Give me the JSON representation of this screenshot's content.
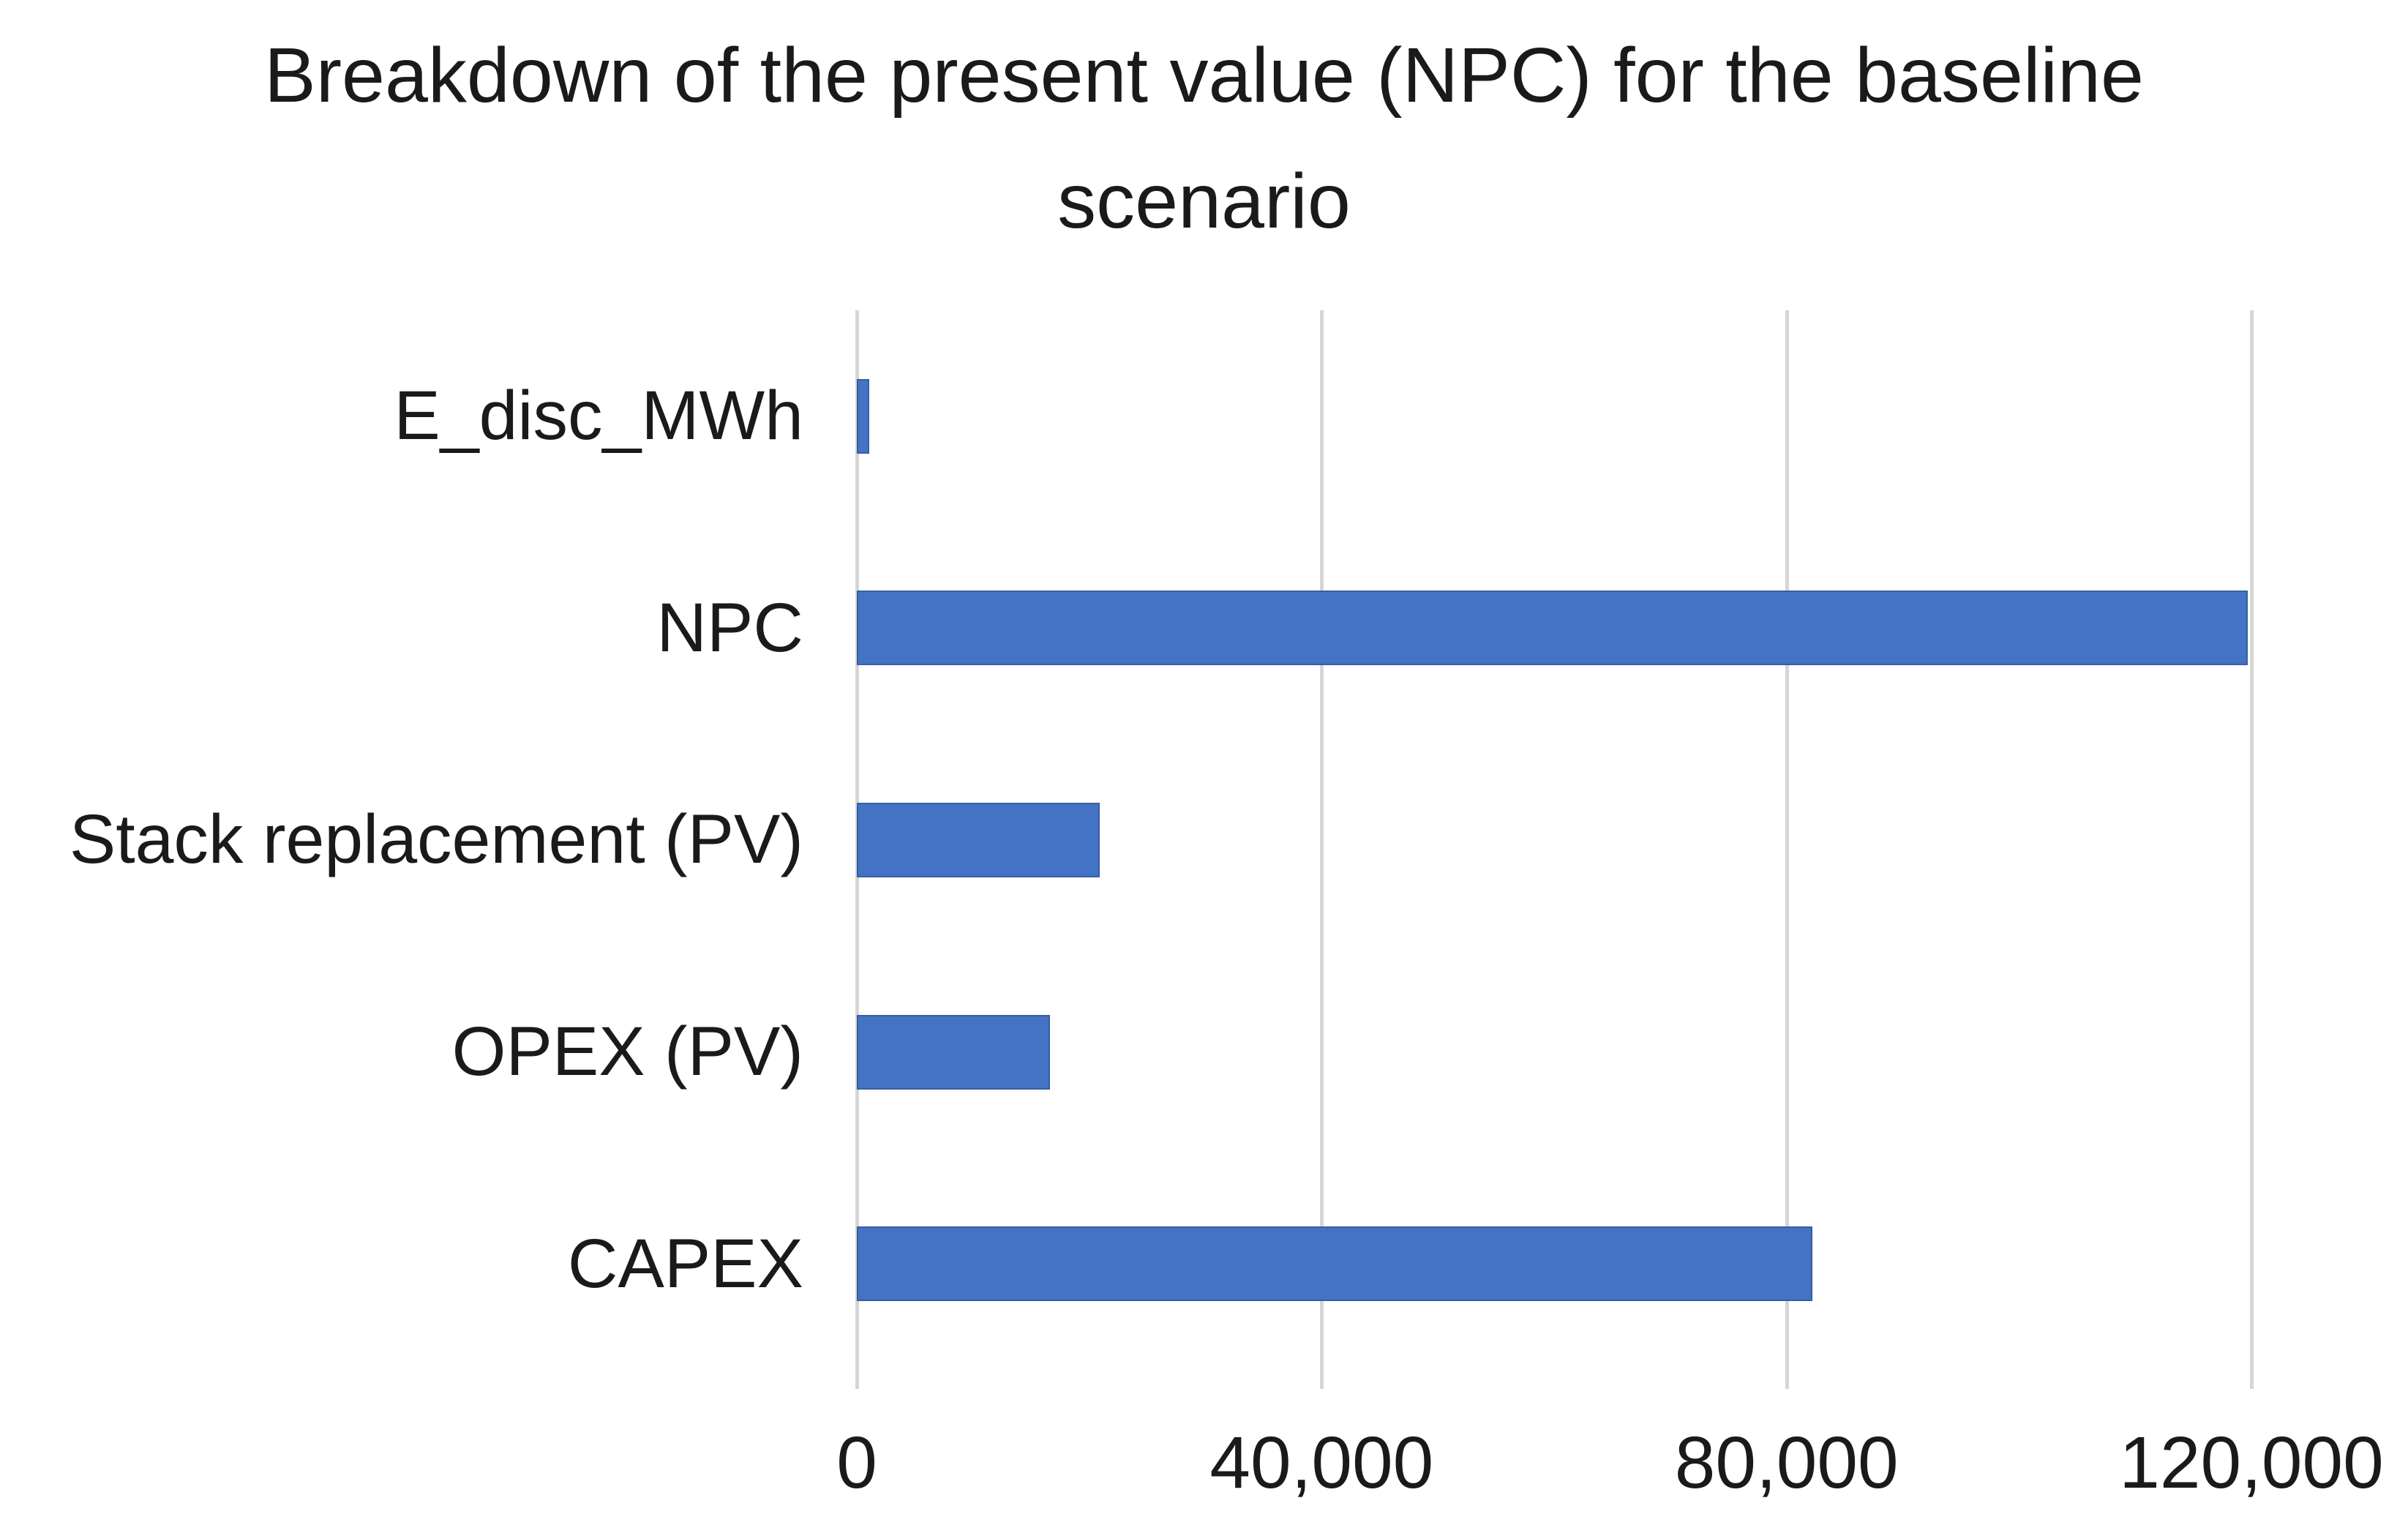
{
  "title": "Breakdown of the present value (NPC) for the baseline scenario",
  "colors": {
    "bar": "#4472C4",
    "gridline": "#D6D6D6",
    "text": "#1A1A1A"
  },
  "chart_data": {
    "type": "bar",
    "orientation": "horizontal",
    "title": "Breakdown of the present value (NPC) for the baseline scenario",
    "categories": [
      "E_disc_MWh",
      "NPC",
      "Stack replacement (PV)",
      "OPEX (PV)",
      "CAPEX"
    ],
    "values": [
      1100,
      119700,
      20900,
      16600,
      82200
    ],
    "series": [
      {
        "name": "Present value",
        "values": [
          1100,
          119700,
          20900,
          16600,
          82200
        ]
      }
    ],
    "xlabel": "",
    "ylabel": "",
    "xlim": [
      0,
      120000
    ],
    "xticks": [
      {
        "value": 0,
        "label": "0"
      },
      {
        "value": 40000,
        "label": "40,000"
      },
      {
        "value": 80000,
        "label": "80,000"
      },
      {
        "value": 120000,
        "label": "120,000"
      }
    ],
    "grid": "vertical-gridlines-on",
    "legend": "none",
    "bar_color": "#4472C4"
  }
}
